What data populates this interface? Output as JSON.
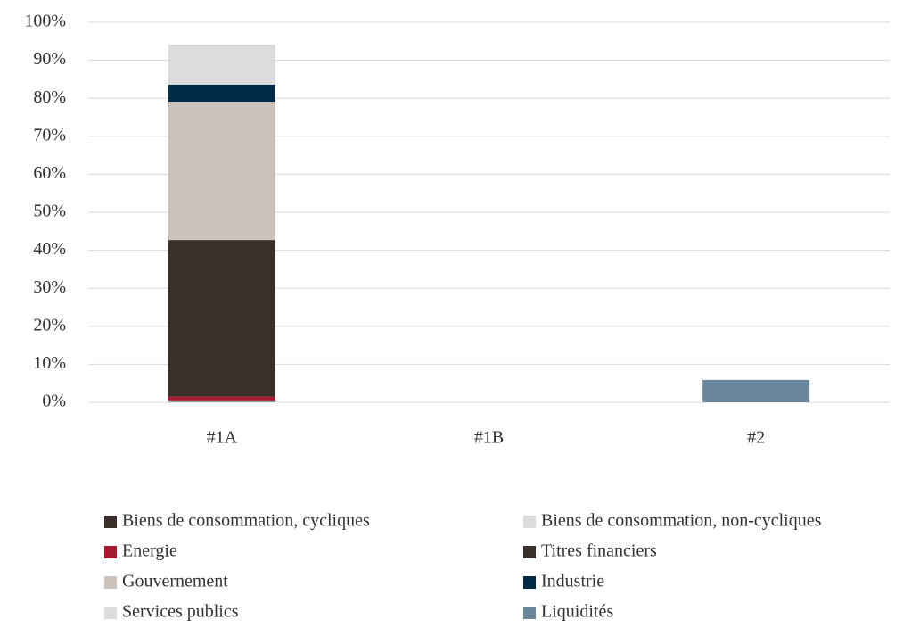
{
  "chart_data": {
    "type": "stacked_bar",
    "categories": [
      "#1A",
      "#1B",
      "#2"
    ],
    "series": [
      {
        "name": "Biens de consommation, cycliques",
        "color": "#3b2f2c",
        "values": [
          0.1,
          0,
          0
        ]
      },
      {
        "name": "Biens de consommation, non-cycliques",
        "color": "#dcdcdc",
        "values": [
          0.4,
          0,
          0
        ]
      },
      {
        "name": "Energie",
        "color": "#a6192e",
        "values": [
          1.0,
          0,
          0
        ]
      },
      {
        "name": "Titres financiers",
        "color": "#3b2f2c",
        "values": [
          41.2,
          0,
          0
        ]
      },
      {
        "name": "Gouvernement",
        "color": "#cbc0bb",
        "values": [
          36.4,
          0,
          0
        ]
      },
      {
        "name": "Industrie",
        "color": "#002b49",
        "values": [
          4.5,
          0,
          0
        ]
      },
      {
        "name": "Services publics",
        "color": "#dcdcdc",
        "values": [
          10.5,
          0,
          0
        ]
      },
      {
        "name": "Liquidités",
        "color": "#6b879c",
        "values": [
          0,
          0,
          5.9
        ]
      }
    ],
    "ylim": [
      0,
      100
    ],
    "yticks": [
      {
        "value": 0,
        "label": "0%"
      },
      {
        "value": 10,
        "label": "10%"
      },
      {
        "value": 20,
        "label": "20%"
      },
      {
        "value": 30,
        "label": "30%"
      },
      {
        "value": 40,
        "label": "40%"
      },
      {
        "value": 50,
        "label": "50%"
      },
      {
        "value": 60,
        "label": "60%"
      },
      {
        "value": 70,
        "label": "70%"
      },
      {
        "value": 80,
        "label": "80%"
      },
      {
        "value": 90,
        "label": "90%"
      },
      {
        "value": 100,
        "label": "100%"
      }
    ],
    "grid": true,
    "legend": "bottom"
  }
}
